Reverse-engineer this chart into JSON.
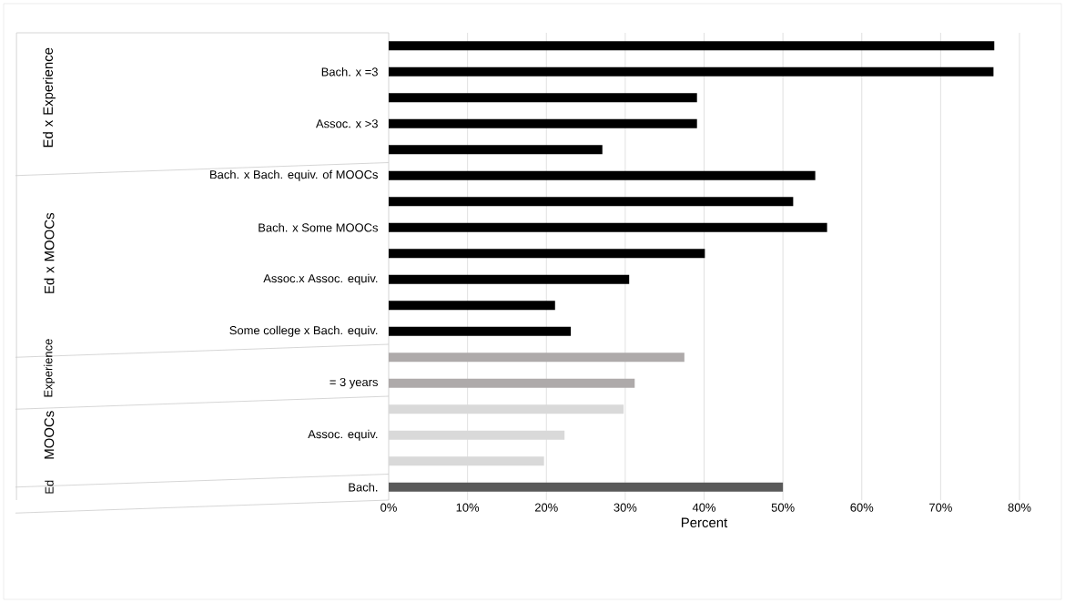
{
  "chart_data": {
    "type": "bar",
    "orientation": "horizontal",
    "categories": [
      null,
      "Bach. x =3",
      null,
      "Assoc. x >3",
      null,
      "Bach. x Bach. equiv. of MOOCs",
      null,
      "Bach. x Some MOOCs",
      null,
      "Assoc.x Assoc. equiv.",
      null,
      "Some college x Bach. equiv.",
      null,
      "= 3 years",
      null,
      "Assoc. equiv.",
      null,
      "Bach."
    ],
    "values": [
      76.8,
      76.7,
      39.1,
      39.1,
      27.1,
      54.1,
      51.3,
      55.6,
      40.1,
      30.5,
      21.1,
      23.1,
      37.5,
      31.2,
      29.8,
      22.3,
      19.7,
      50.0
    ],
    "colors": [
      "#000000",
      "#000000",
      "#000000",
      "#000000",
      "#000000",
      "#000000",
      "#000000",
      "#000000",
      "#000000",
      "#000000",
      "#000000",
      "#000000",
      "#aeaaaa",
      "#aeaaaa",
      "#d9d9d9",
      "#d9d9d9",
      "#d9d9d9",
      "#595959"
    ],
    "xlim": [
      0,
      80
    ],
    "xticks": [
      {
        "value": 0,
        "label": "0%"
      },
      {
        "value": 10,
        "label": "10%"
      },
      {
        "value": 20,
        "label": "20%"
      },
      {
        "value": 30,
        "label": "30%"
      },
      {
        "value": 40,
        "label": "40%"
      },
      {
        "value": 50,
        "label": "50%"
      },
      {
        "value": 60,
        "label": "60%"
      },
      {
        "value": 70,
        "label": "70%"
      },
      {
        "value": 80,
        "label": "80%"
      }
    ],
    "xlabel": "Percent",
    "annotations": [
      "Ed x Experience",
      "Ed x MOOCs",
      "Experience",
      "MOOCs",
      "Ed"
    ],
    "grid": "x"
  }
}
